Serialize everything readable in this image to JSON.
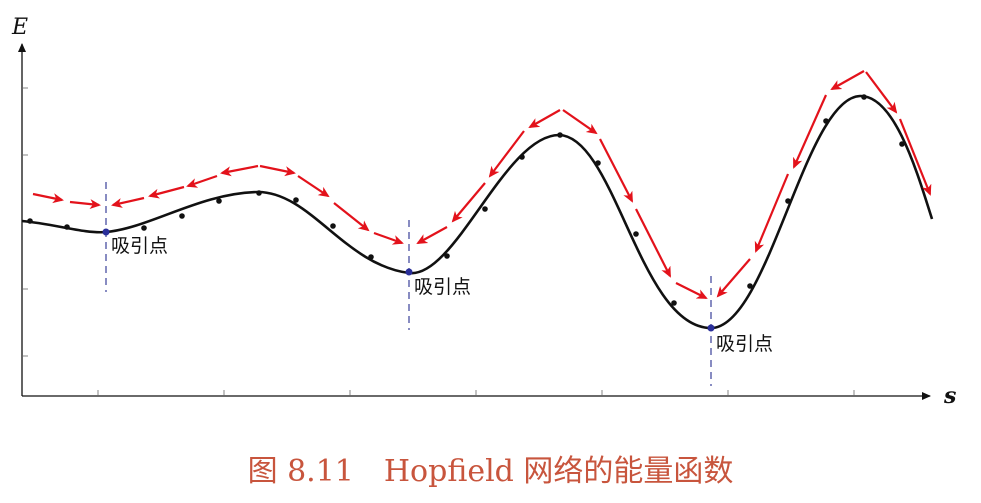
{
  "diagram": {
    "y_axis_label": "E",
    "x_axis_label": "s",
    "attractor_label": "吸引点",
    "caption": "图 8.11　Hopfield 网络的能量函数",
    "colors": {
      "curve": "#111111",
      "arrows": "#e3121b",
      "attractor_points": "#2a2f9a",
      "guide_lines": "#3a3f9a",
      "caption": "#c8553d"
    }
  }
}
